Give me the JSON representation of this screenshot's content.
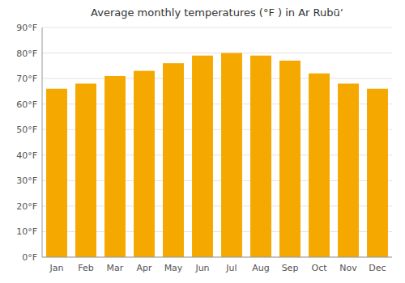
{
  "chart_data": {
    "type": "bar",
    "title": "Average monthly temperatures (°F ) in Ar Rubūʼ",
    "categories": [
      "Jan",
      "Feb",
      "Mar",
      "Apr",
      "May",
      "Jun",
      "Jul",
      "Aug",
      "Sep",
      "Oct",
      "Nov",
      "Dec"
    ],
    "values": [
      66,
      68,
      71,
      73,
      76,
      79,
      80,
      79,
      77,
      72,
      68,
      66
    ],
    "color": "#F5A800",
    "ylim": [
      0,
      90
    ],
    "yticks": [
      {
        "value": 0,
        "label": "0°F"
      },
      {
        "value": 10,
        "label": "10°F"
      },
      {
        "value": 20,
        "label": "20°F"
      },
      {
        "value": 30,
        "label": "30°F"
      },
      {
        "value": 40,
        "label": "40°F"
      },
      {
        "value": 50,
        "label": "50°F"
      },
      {
        "value": 60,
        "label": "60°F"
      },
      {
        "value": 70,
        "label": "70°F"
      },
      {
        "value": 80,
        "label": "80°F"
      },
      {
        "value": 90,
        "label": "90°F"
      }
    ],
    "grid": true
  }
}
